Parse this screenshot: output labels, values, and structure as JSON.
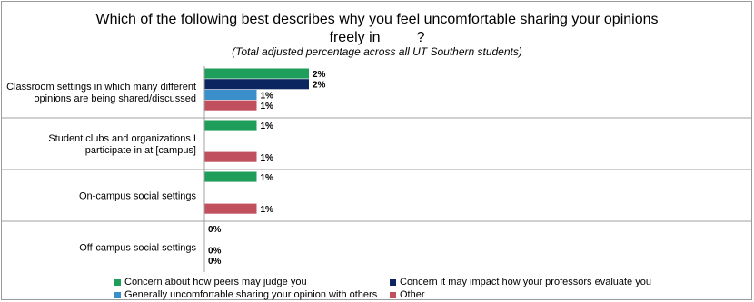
{
  "chart_data": {
    "type": "bar",
    "orientation": "horizontal",
    "title": "Which of the following best describes why you feel uncomfortable sharing your opinions freely in ____?",
    "title_lines": [
      "Which of the following best describes why you feel uncomfortable sharing your opinions",
      "freely in ____?"
    ],
    "subtitle": "(Total adjusted percentage across all UT Southern students)",
    "categories": [
      [
        "Classroom settings in which many different",
        "opinions are being shared/discussed"
      ],
      [
        "Student clubs and organizations I",
        "participate in at [campus]"
      ],
      [
        "On-campus social settings"
      ],
      [
        "Off-campus social settings"
      ]
    ],
    "series": [
      {
        "name": "Concern about how peers may judge you",
        "color": "#1e9e5a",
        "values": [
          2,
          1,
          1,
          0
        ]
      },
      {
        "name": "Concern it may impact how your professors evaluate you",
        "color": "#0b2560",
        "values": [
          2,
          null,
          null,
          null
        ]
      },
      {
        "name": "Generally uncomfortable sharing your opinion with others",
        "color": "#3a8fcb",
        "values": [
          1,
          null,
          null,
          0
        ]
      },
      {
        "name": "Other",
        "color": "#c0505e",
        "values": [
          1,
          1,
          1,
          0
        ]
      }
    ],
    "value_suffix": "%",
    "xlim": [
      0,
      2
    ],
    "grid": false,
    "legend_position": "bottom"
  }
}
